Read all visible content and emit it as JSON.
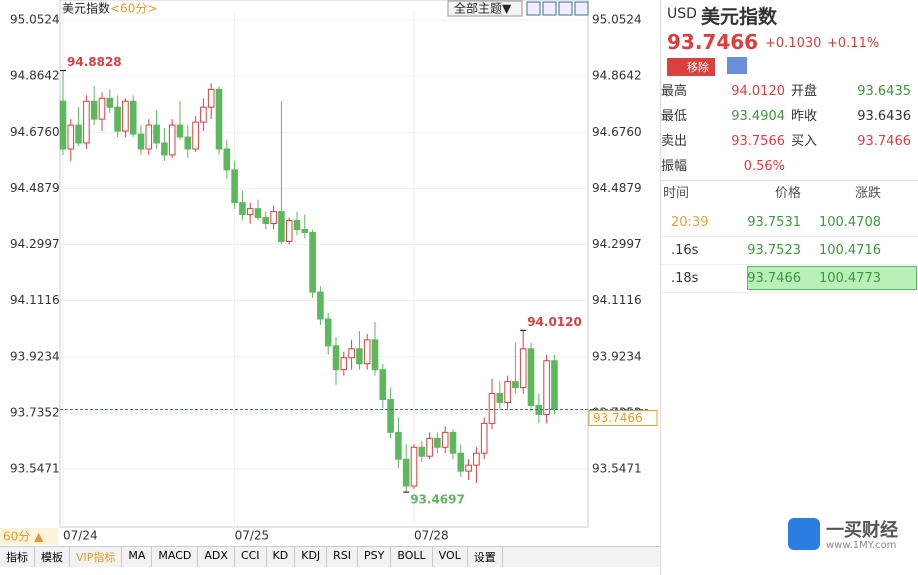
{
  "chart_data": {
    "type": "candlestick",
    "title": "美元指数",
    "period": "<60分>",
    "theme_menu": "全部主题▼",
    "period_button": "60分 ▲",
    "up_color": "#e03c3c",
    "down_color": "#5cb85c",
    "grid": true,
    "ylim": [
      93.3761,
      95.0859
    ],
    "yticks": [
      95.0524,
      94.8642,
      {
        "value": 94.676,
        "label": "94.6760"
      },
      94.4879,
      94.2997,
      94.1116,
      93.9234,
      93.7352,
      93.5471
    ],
    "categories": [
      "07/24",
      null,
      null,
      null,
      null,
      null,
      null,
      null,
      null,
      null,
      null,
      null,
      null,
      null,
      null,
      null,
      null,
      null,
      null,
      null,
      null,
      null,
      "07/25",
      null,
      null,
      null,
      null,
      null,
      null,
      null,
      null,
      null,
      null,
      null,
      null,
      null,
      null,
      null,
      null,
      null,
      null,
      null,
      null,
      null,
      null,
      "07/28",
      null,
      null,
      null,
      null,
      null,
      null,
      null,
      null,
      null,
      null,
      null,
      null,
      null,
      null,
      null,
      null,
      null,
      null
    ],
    "open": [
      94.78,
      94.62,
      94.7,
      94.64,
      94.78,
      94.72,
      94.79,
      94.76,
      94.68,
      94.78,
      94.67,
      94.62,
      94.7,
      94.64,
      94.6,
      94.7,
      94.66,
      94.62,
      94.71,
      94.76,
      94.82,
      94.62,
      94.55,
      94.44,
      94.4,
      94.42,
      94.39,
      94.37,
      94.41,
      94.31,
      94.38,
      94.35,
      94.34,
      94.14,
      94.05,
      93.96,
      93.88,
      93.92,
      93.95,
      93.9,
      93.98,
      93.88,
      93.78,
      93.67,
      93.58,
      93.49,
      93.62,
      93.59,
      93.65,
      93.62,
      93.67,
      93.6,
      93.54,
      93.56,
      93.6,
      93.7,
      93.8,
      93.77,
      93.84,
      93.82,
      93.95,
      93.76,
      93.73,
      93.91
    ],
    "high": [
      94.8828,
      94.72,
      94.76,
      94.8,
      94.83,
      94.81,
      94.82,
      94.8,
      94.79,
      94.8,
      94.7,
      94.72,
      94.75,
      94.69,
      94.72,
      94.78,
      94.7,
      94.73,
      94.79,
      94.84,
      94.83,
      94.65,
      94.58,
      94.48,
      94.44,
      94.45,
      94.41,
      94.43,
      94.78,
      94.39,
      94.41,
      94.4,
      94.35,
      94.16,
      94.07,
      93.99,
      93.94,
      93.98,
      94.01,
      94.0,
      94.04,
      93.9,
      93.82,
      93.72,
      93.63,
      93.63,
      93.64,
      93.67,
      93.67,
      93.69,
      93.68,
      93.63,
      93.58,
      93.62,
      93.72,
      93.85,
      93.84,
      93.86,
      93.97,
      94.012,
      93.97,
      93.8,
      93.93,
      93.93
    ],
    "low": [
      94.6,
      94.58,
      94.63,
      94.62,
      94.7,
      94.68,
      94.74,
      94.66,
      94.66,
      94.66,
      94.6,
      94.6,
      94.62,
      94.58,
      94.59,
      94.65,
      94.59,
      94.61,
      94.68,
      94.72,
      94.6,
      94.52,
      94.42,
      94.38,
      94.37,
      94.38,
      94.35,
      94.35,
      94.3,
      94.3,
      94.33,
      94.32,
      94.12,
      94.03,
      93.93,
      93.83,
      93.86,
      93.88,
      93.88,
      93.88,
      93.86,
      93.75,
      93.65,
      93.55,
      93.4697,
      93.48,
      93.57,
      93.58,
      93.6,
      93.6,
      93.58,
      93.52,
      93.51,
      93.5,
      93.58,
      93.68,
      93.75,
      93.75,
      93.8,
      93.8,
      93.74,
      93.7,
      93.7,
      93.73
    ],
    "close": [
      94.62,
      94.7,
      94.64,
      94.78,
      94.72,
      94.79,
      94.76,
      94.68,
      94.78,
      94.67,
      94.62,
      94.7,
      94.64,
      94.6,
      94.7,
      94.66,
      94.62,
      94.71,
      94.76,
      94.82,
      94.62,
      94.55,
      94.44,
      94.4,
      94.42,
      94.39,
      94.37,
      94.41,
      94.31,
      94.38,
      94.35,
      94.34,
      94.14,
      94.05,
      93.96,
      93.88,
      93.92,
      93.95,
      93.9,
      93.98,
      93.88,
      93.78,
      93.67,
      93.58,
      93.49,
      93.62,
      93.59,
      93.65,
      93.62,
      93.67,
      93.6,
      93.54,
      93.56,
      93.6,
      93.7,
      93.8,
      93.77,
      93.84,
      93.82,
      93.95,
      93.76,
      93.73,
      93.91,
      93.7466
    ],
    "annotations": [
      {
        "value": 94.8828,
        "label": "94.8828"
      },
      {
        "value": 94.012,
        "label": "94.0120"
      },
      {
        "value": 93.4697,
        "label": "93.4697"
      }
    ],
    "toolbar": [
      "指标",
      "模板",
      "VIP指标",
      "MA",
      "MACD",
      "ADX",
      "CCI",
      "KD",
      "KDJ",
      "RSI",
      "PSY",
      "BOLL",
      "VOL",
      "设置"
    ]
  },
  "quote": {
    "symbol": "USD",
    "name": "美元指数",
    "price": "93.7466",
    "change": "+0.1030",
    "pct": "+0.11%",
    "remove": "移除",
    "rows": [
      [
        "最高",
        "94.0120",
        "开盘",
        "93.6435"
      ],
      [
        "最低",
        "93.4904",
        "昨收",
        "93.6436"
      ],
      [
        "卖出",
        "93.7566",
        "买入",
        "93.7466"
      ],
      [
        "振幅",
        "0.56%"
      ]
    ],
    "ticks_header": [
      "时间",
      "价格",
      "涨跌"
    ],
    "ticks": [
      [
        "20:39",
        "93.7531",
        "100.4708"
      ],
      [
        ".16s",
        "93.7523",
        "100.4716"
      ],
      [
        ".18s",
        "93.7466",
        "100.4773"
      ]
    ]
  },
  "watermark": {
    "brand": "一买财经",
    "url": "www.1MY.com"
  }
}
